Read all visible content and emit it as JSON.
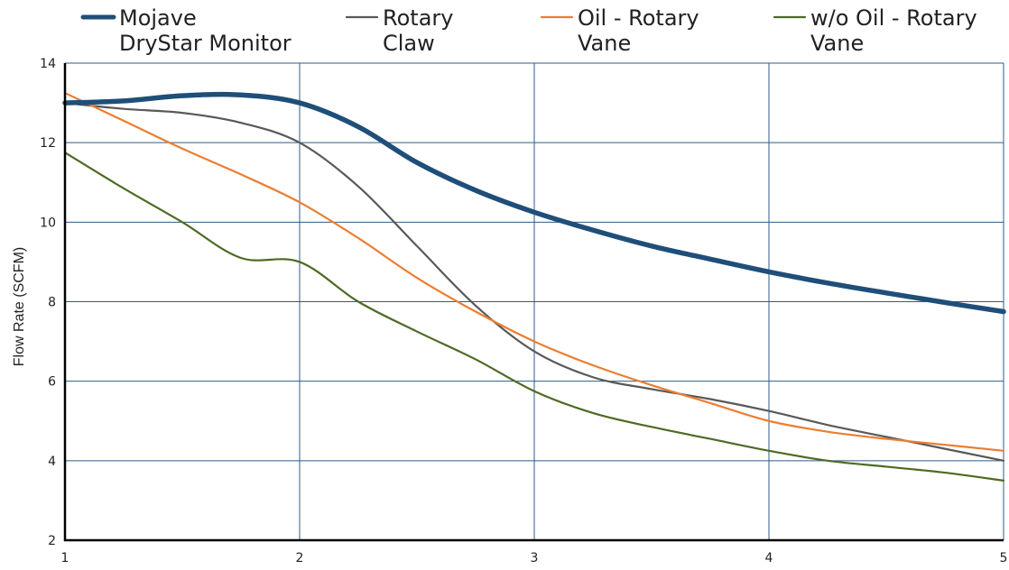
{
  "chart_data": {
    "type": "line",
    "title": "",
    "xlabel": "",
    "ylabel": "Flow Rate (SCFM)",
    "xlim": [
      1,
      5
    ],
    "ylim": [
      2,
      14
    ],
    "xticks": [
      1,
      2,
      3,
      4,
      5
    ],
    "yticks": [
      2,
      4,
      6,
      8,
      10,
      12,
      14
    ],
    "grid": true,
    "legend_position": "top",
    "series": [
      {
        "name_lines": [
          "Mojave",
          "DryStar Monitor"
        ],
        "color": "#1F4E79",
        "emphasis": true,
        "x": [
          1,
          1.25,
          1.5,
          1.75,
          2,
          2.25,
          2.5,
          2.75,
          3,
          3.25,
          3.5,
          3.75,
          4,
          4.25,
          4.5,
          4.75,
          5
        ],
        "y": [
          13.0,
          13.05,
          13.18,
          13.2,
          13.0,
          12.4,
          11.5,
          10.8,
          10.25,
          9.8,
          9.4,
          9.07,
          8.75,
          8.47,
          8.22,
          7.98,
          7.75
        ]
      },
      {
        "name_lines": [
          "Rotary",
          "Claw"
        ],
        "color": "#595959",
        "emphasis": false,
        "x": [
          1,
          1.25,
          1.5,
          1.75,
          2,
          2.25,
          2.5,
          2.75,
          3,
          3.25,
          3.5,
          3.75,
          4,
          4.25,
          4.5,
          4.75,
          5
        ],
        "y": [
          13.0,
          12.85,
          12.75,
          12.5,
          12.0,
          10.9,
          9.4,
          7.9,
          6.75,
          6.1,
          5.8,
          5.55,
          5.25,
          4.9,
          4.6,
          4.3,
          4.0
        ]
      },
      {
        "name_lines": [
          "Oil - Rotary",
          "Vane"
        ],
        "color": "#ED7D31",
        "emphasis": false,
        "x": [
          1,
          1.25,
          1.5,
          1.75,
          2,
          2.25,
          2.5,
          2.75,
          3,
          3.25,
          3.5,
          3.75,
          4,
          4.25,
          4.5,
          4.75,
          5
        ],
        "y": [
          13.25,
          12.55,
          11.85,
          11.2,
          10.5,
          9.6,
          8.6,
          7.75,
          7.0,
          6.4,
          5.9,
          5.45,
          5.0,
          4.73,
          4.55,
          4.4,
          4.25
        ]
      },
      {
        "name_lines": [
          "w/o Oil - Rotary",
          "Vane"
        ],
        "color": "#4E6A24",
        "emphasis": false,
        "x": [
          1,
          1.25,
          1.5,
          1.75,
          2,
          2.25,
          2.5,
          2.75,
          3,
          3.25,
          3.5,
          3.75,
          4,
          4.25,
          4.5,
          4.75,
          5
        ],
        "y": [
          11.75,
          10.85,
          10.0,
          9.1,
          9.0,
          8.0,
          7.25,
          6.55,
          5.75,
          5.2,
          4.85,
          4.55,
          4.25,
          4.0,
          3.85,
          3.7,
          3.5
        ]
      }
    ]
  }
}
